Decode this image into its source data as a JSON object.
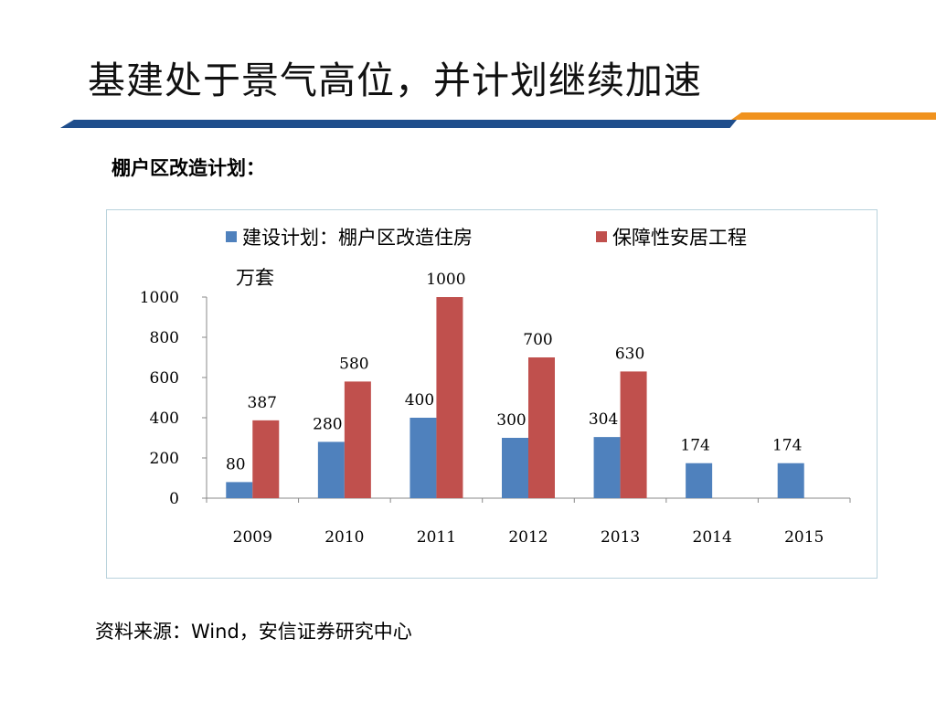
{
  "slide": {
    "title": "基建处于景气高位，并计划继续加速",
    "subtitle": "棚户区改造计划：",
    "source": "资料来源：Wind，安信证券研究中心"
  },
  "chart_data": {
    "type": "bar",
    "unit_label": "万套",
    "categories": [
      "2009",
      "2010",
      "2011",
      "2012",
      "2013",
      "2014",
      "2015"
    ],
    "series": [
      {
        "name": "建设计划：棚户区改造住房",
        "color": "#4f81bd",
        "values": [
          80,
          280,
          400,
          300,
          304,
          174,
          174
        ],
        "labels": [
          "80",
          "280",
          "400",
          "300",
          "304",
          "174",
          "174"
        ]
      },
      {
        "name": "保障性安居工程",
        "color": "#c0504d",
        "values": [
          387,
          580,
          1000,
          700,
          630,
          null,
          null
        ],
        "labels": [
          "387",
          "580",
          "1000",
          "700",
          "630",
          null,
          null
        ]
      }
    ],
    "ylim": [
      0,
      1000
    ],
    "yticks": [
      0,
      200,
      400,
      600,
      800,
      1000
    ],
    "grid": false,
    "legend_position": "top"
  }
}
